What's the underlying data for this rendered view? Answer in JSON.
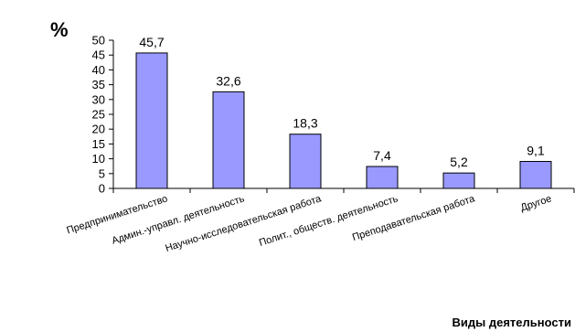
{
  "chart_data": {
    "type": "bar",
    "ylabel": "%",
    "xlabel": "Виды деятельности",
    "categories": [
      "Предпринимательство",
      "Админ.-управл. деятельность",
      "Научно-исследовательская работа",
      "Полит., обществ. деятельность",
      "Преподавательская работа",
      "Другое"
    ],
    "values": [
      45.7,
      32.6,
      18.3,
      7.4,
      5.2,
      9.1
    ],
    "value_labels": [
      "45,7",
      "32,6",
      "18,3",
      "7,4",
      "5,2",
      "9,1"
    ],
    "ylim": [
      0,
      50
    ],
    "yticks": [
      "0",
      "5",
      "10",
      "15",
      "20",
      "25",
      "30",
      "35",
      "40",
      "45",
      "50"
    ],
    "grid": false,
    "legend": "none",
    "colors": {
      "bar_fill": "#9999ff",
      "bar_stroke": "#000000"
    }
  }
}
